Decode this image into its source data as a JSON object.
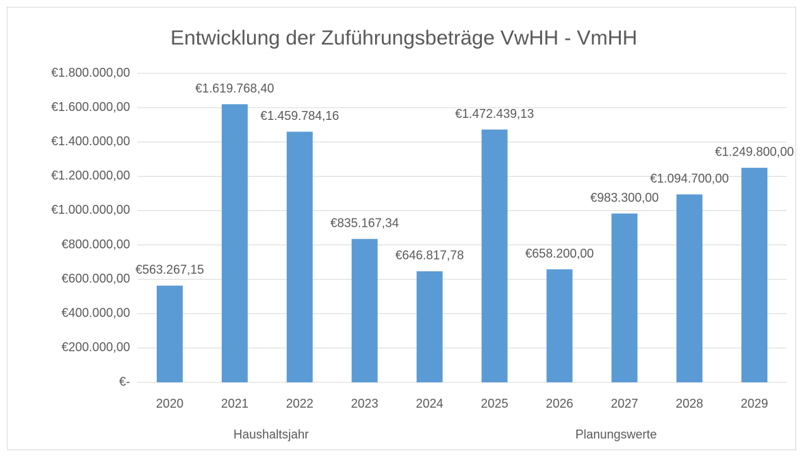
{
  "chart_data": {
    "type": "bar",
    "title": "Entwicklung der Zuführungsbeträge VwHH - VmHH",
    "categories": [
      "2020",
      "2021",
      "2022",
      "2023",
      "2024",
      "2025",
      "2026",
      "2027",
      "2028",
      "2029"
    ],
    "values": [
      563267.15,
      1619768.4,
      1459784.16,
      835167.34,
      646817.78,
      1472439.13,
      658200.0,
      983300.0,
      1094700.0,
      1249800.0
    ],
    "value_labels": [
      "€563.267,15",
      "€1.619.768,40",
      "€1.459.784,16",
      "€835.167,34",
      "€646.817,78",
      "€1.472.439,13",
      "€658.200,00",
      "€983.300,00",
      "€1.094.700,00",
      "€1.249.800,00"
    ],
    "color": "#5b9bd5",
    "ylim": [
      0,
      1800000
    ],
    "yticks": [
      {
        "value": 0,
        "label": "€-"
      },
      {
        "value": 200000,
        "label": "€200.000,00"
      },
      {
        "value": 400000,
        "label": "€400.000,00"
      },
      {
        "value": 600000,
        "label": "€600.000,00"
      },
      {
        "value": 800000,
        "label": "€800.000,00"
      },
      {
        "value": 1000000,
        "label": "€1.000.000,00"
      },
      {
        "value": 1200000,
        "label": "€1.200.000,00"
      },
      {
        "value": 1400000,
        "label": "€1.400.000,00"
      },
      {
        "value": 1600000,
        "label": "€1.600.000,00"
      },
      {
        "value": 1800000,
        "label": "€1.800.000,00"
      }
    ],
    "grid": true,
    "annotations": [
      "Haushaltsjahr",
      "Planungswerte"
    ]
  }
}
